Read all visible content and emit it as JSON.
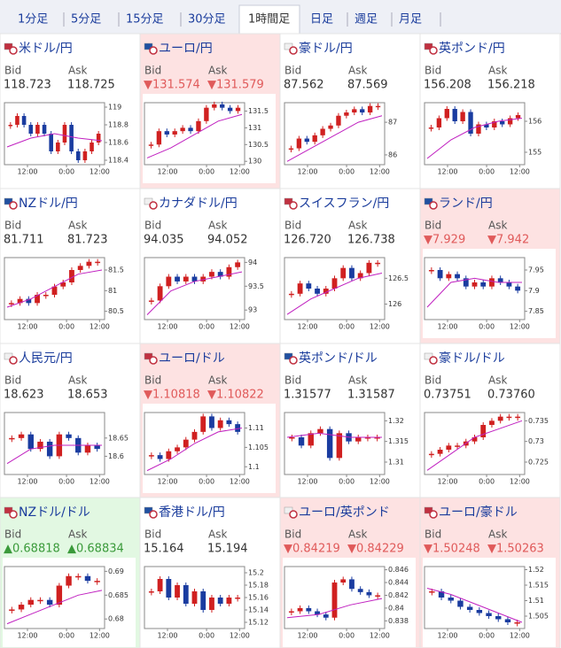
{
  "tabs": {
    "items": [
      "1分足",
      "5分足",
      "15分足",
      "30分足",
      "1時間足",
      "日足",
      "週足",
      "月足"
    ],
    "selected": 4
  },
  "labels": {
    "bid": "Bid",
    "ask": "Ask"
  },
  "tiles": [
    {
      "name": "米ドル/円",
      "trend": "none",
      "bid": "118.723",
      "ask": "118.725",
      "ylim": [
        118.35,
        119.05
      ],
      "yticks": [
        119,
        118.8,
        118.6,
        118.4
      ],
      "xticks": [
        "12:00",
        "0:00",
        "12:00"
      ],
      "closes": [
        118.8,
        118.9,
        118.8,
        118.7,
        118.8,
        118.7,
        118.5,
        118.6,
        118.8,
        118.5,
        118.4,
        118.5,
        118.6,
        118.7
      ],
      "ma": [
        118.55,
        118.65,
        118.7,
        118.65,
        118.62
      ]
    },
    {
      "name": "ユーロ/円",
      "trend": "down",
      "bid": "▼131.574",
      "ask": "▼131.579",
      "ylim": [
        129.9,
        131.75
      ],
      "yticks": [
        131.5,
        131,
        130.5,
        130
      ],
      "xticks": [
        "12:00",
        "0:00",
        "12:00"
      ],
      "closes": [
        130.5,
        130.9,
        130.8,
        130.9,
        131.0,
        130.9,
        131.2,
        131.6,
        131.7,
        131.6,
        131.5,
        131.6
      ],
      "ma": [
        130.1,
        130.4,
        130.8,
        131.2,
        131.4
      ]
    },
    {
      "name": "豪ドル/円",
      "trend": "none",
      "bid": "87.562",
      "ask": "87.569",
      "ylim": [
        85.7,
        87.6
      ],
      "yticks": [
        87,
        86
      ],
      "xticks": [
        "12:00",
        "0:00",
        "12:00"
      ],
      "closes": [
        86.2,
        86.5,
        86.4,
        86.6,
        86.8,
        86.9,
        87.2,
        87.3,
        87.4,
        87.3,
        87.5,
        87.5
      ],
      "ma": [
        85.8,
        86.2,
        86.6,
        87,
        87.2
      ]
    },
    {
      "name": "英ポンド/円",
      "trend": "none",
      "bid": "156.208",
      "ask": "156.218",
      "ylim": [
        154.6,
        156.6
      ],
      "yticks": [
        156,
        155
      ],
      "xticks": [
        "12:00",
        "0:00",
        "12:00"
      ],
      "closes": [
        155.8,
        156.1,
        156.4,
        156.0,
        156.3,
        155.6,
        155.9,
        155.8,
        156.0,
        155.9,
        156.1,
        156.2
      ],
      "ma": [
        154.8,
        155.4,
        155.8,
        156.0,
        156.1
      ]
    },
    {
      "name": "NZドル/円",
      "trend": "none",
      "bid": "81.711",
      "ask": "81.723",
      "ylim": [
        80.3,
        81.8
      ],
      "yticks": [
        81.5,
        81,
        80.5
      ],
      "xticks": [
        "12:00",
        "0:00",
        "12:00"
      ],
      "closes": [
        80.7,
        80.8,
        80.7,
        80.9,
        80.9,
        81.1,
        81.2,
        81.5,
        81.6,
        81.7,
        81.7
      ],
      "ma": [
        80.6,
        80.8,
        81.1,
        81.4,
        81.5
      ]
    },
    {
      "name": "カナダドル/円",
      "trend": "none",
      "bid": "94.035",
      "ask": "94.052",
      "ylim": [
        92.8,
        94.1
      ],
      "yticks": [
        94,
        93.5,
        93
      ],
      "xticks": [
        "12:00",
        "0:00",
        "12:00"
      ],
      "closes": [
        93.2,
        93.5,
        93.7,
        93.6,
        93.7,
        93.6,
        93.7,
        93.8,
        93.7,
        93.9,
        94.0
      ],
      "ma": [
        92.9,
        93.4,
        93.6,
        93.7,
        93.8
      ]
    },
    {
      "name": "スイスフラン/円",
      "trend": "none",
      "bid": "126.720",
      "ask": "126.738",
      "ylim": [
        125.7,
        126.9
      ],
      "yticks": [
        126.5,
        126
      ],
      "xticks": [
        "12:00",
        "0:00",
        "12:00"
      ],
      "closes": [
        126.2,
        126.4,
        126.3,
        126.2,
        126.3,
        126.5,
        126.7,
        126.5,
        126.6,
        126.8,
        126.8
      ],
      "ma": [
        125.8,
        126.1,
        126.3,
        126.5,
        126.6
      ]
    },
    {
      "name": "ランド/円",
      "trend": "down",
      "bid": "▼7.929",
      "ask": "▼7.942",
      "ylim": [
        7.83,
        7.98
      ],
      "yticks": [
        7.95,
        7.9,
        7.85
      ],
      "xticks": [
        "12:00",
        "0:00",
        "12:00"
      ],
      "closes": [
        7.95,
        7.93,
        7.94,
        7.93,
        7.91,
        7.92,
        7.91,
        7.93,
        7.92,
        7.91,
        7.9
      ],
      "ma": [
        7.86,
        7.92,
        7.93,
        7.92,
        7.92
      ]
    },
    {
      "name": "人民元/円",
      "trend": "none",
      "bid": "18.623",
      "ask": "18.653",
      "ylim": [
        18.55,
        18.72
      ],
      "yticks": [
        18.65,
        18.6
      ],
      "xticks": [
        "12:00",
        "0:00",
        "12:00"
      ],
      "closes": [
        18.65,
        18.66,
        18.62,
        18.64,
        18.6,
        18.66,
        18.65,
        18.61,
        18.63,
        18.62
      ],
      "ma": [
        18.58,
        18.62,
        18.63,
        18.63,
        18.63
      ]
    },
    {
      "name": "ユーロ/ドル",
      "trend": "down",
      "bid": "▼1.10818",
      "ask": "▼1.10822",
      "ylim": [
        1.098,
        1.114
      ],
      "yticks": [
        1.11,
        1.105,
        1.1
      ],
      "xticks": [
        "12:00",
        "0:00",
        "12:00"
      ],
      "closes": [
        1.103,
        1.102,
        1.104,
        1.105,
        1.107,
        1.109,
        1.113,
        1.11,
        1.112,
        1.111,
        1.109
      ],
      "ma": [
        1.099,
        1.102,
        1.106,
        1.109,
        1.11
      ]
    },
    {
      "name": "英ポンド/ドル",
      "trend": "none",
      "bid": "1.31577",
      "ask": "1.31587",
      "ylim": [
        1.307,
        1.322
      ],
      "yticks": [
        1.32,
        1.315,
        1.31
      ],
      "xticks": [
        "12:00",
        "0:00",
        "12:00"
      ],
      "closes": [
        1.316,
        1.314,
        1.317,
        1.318,
        1.311,
        1.317,
        1.315,
        1.316,
        1.316,
        1.316
      ],
      "ma": [
        1.316,
        1.317,
        1.316,
        1.316
      ]
    },
    {
      "name": "豪ドル/ドル",
      "trend": "none",
      "bid": "0.73751",
      "ask": "0.73760",
      "ylim": [
        0.722,
        0.737
      ],
      "yticks": [
        0.735,
        0.73,
        0.725
      ],
      "xticks": [
        "12:00",
        "0:00",
        "12:00"
      ],
      "closes": [
        0.727,
        0.728,
        0.729,
        0.729,
        0.73,
        0.731,
        0.734,
        0.735,
        0.736,
        0.736,
        0.736
      ],
      "ma": [
        0.723,
        0.727,
        0.731,
        0.733,
        0.735
      ]
    },
    {
      "name": "NZドル/ドル",
      "trend": "up",
      "bid": "▲0.68818",
      "ask": "▲0.68834",
      "ylim": [
        0.678,
        0.691
      ],
      "yticks": [
        0.69,
        0.685,
        0.68
      ],
      "xticks": [
        "12:00",
        "0:00",
        "12:00"
      ],
      "closes": [
        0.682,
        0.683,
        0.684,
        0.684,
        0.683,
        0.687,
        0.689,
        0.689,
        0.688,
        0.688
      ],
      "ma": [
        0.679,
        0.681,
        0.683,
        0.685,
        0.686
      ]
    },
    {
      "name": "香港ドル/円",
      "trend": "none",
      "bid": "15.164",
      "ask": "15.194",
      "ylim": [
        15.11,
        15.21
      ],
      "yticks": [
        15.2,
        15.18,
        15.16,
        15.14,
        15.12
      ],
      "xticks": [
        "12:00",
        "0:00",
        "12:00"
      ],
      "closes": [
        15.17,
        15.19,
        15.16,
        15.18,
        15.15,
        15.17,
        15.14,
        15.16,
        15.15,
        15.16,
        15.16
      ],
      "ma": []
    },
    {
      "name": "ユーロ/英ポンド",
      "trend": "down",
      "bid": "▼0.84219",
      "ask": "▼0.84229",
      "ylim": [
        0.8368,
        0.8465
      ],
      "yticks": [
        0.846,
        0.844,
        0.842,
        0.84,
        0.838
      ],
      "xticks": [
        "12:00",
        "0:00",
        "12:00"
      ],
      "closes": [
        0.8395,
        0.84,
        0.8395,
        0.839,
        0.8385,
        0.844,
        0.8445,
        0.843,
        0.8425,
        0.842,
        0.842
      ],
      "ma": [
        0.8385,
        0.839,
        0.8405,
        0.8415
      ]
    },
    {
      "name": "ユーロ/豪ドル",
      "trend": "down",
      "bid": "▼1.50248",
      "ask": "▼1.50263",
      "ylim": [
        1.501,
        1.521
      ],
      "yticks": [
        1.52,
        1.515,
        1.51,
        1.505
      ],
      "xticks": [
        "12:00",
        "0:00",
        "12:00"
      ],
      "closes": [
        1.513,
        1.511,
        1.51,
        1.508,
        1.507,
        1.506,
        1.505,
        1.504,
        1.503,
        1.503
      ],
      "ma": [
        1.514,
        1.512,
        1.509,
        1.506,
        1.503
      ]
    }
  ]
}
